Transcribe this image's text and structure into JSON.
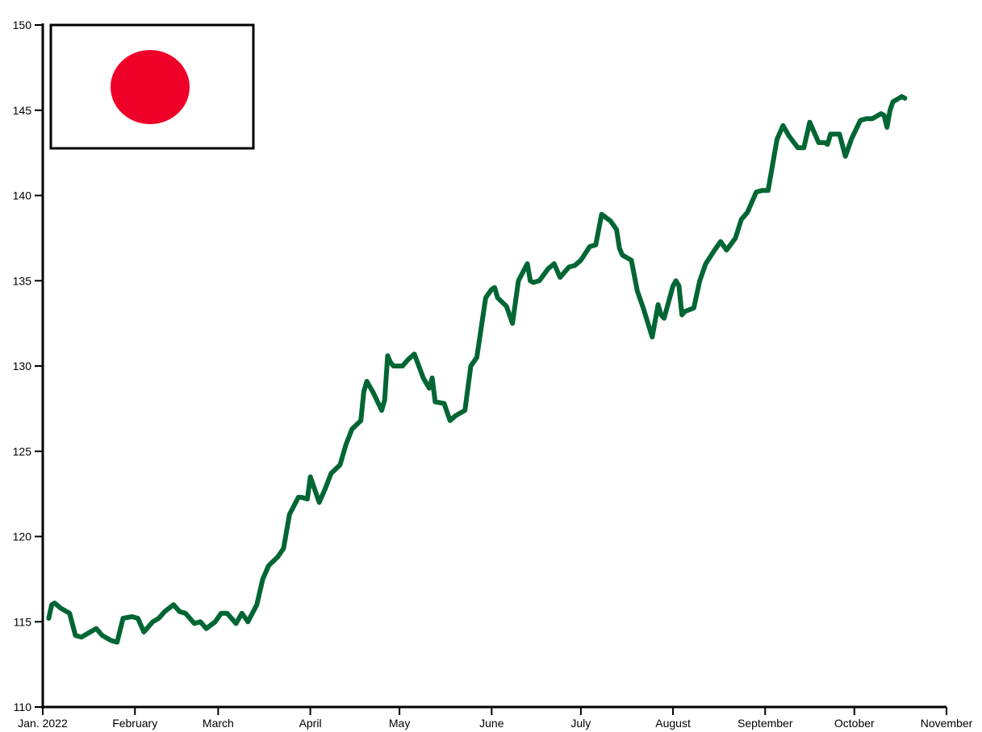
{
  "chart_data": {
    "type": "line",
    "title": "",
    "xlabel": "",
    "ylabel": "",
    "ylim": [
      110,
      150
    ],
    "xlim": [
      "2022-01-01",
      "2022-11-01"
    ],
    "yticks": [
      110,
      115,
      120,
      125,
      130,
      135,
      140,
      145,
      150
    ],
    "xticks": [
      {
        "date": "2022-01-01",
        "label": "Jan. 2022"
      },
      {
        "date": "2022-02-01",
        "label": "February"
      },
      {
        "date": "2022-03-01",
        "label": "March"
      },
      {
        "date": "2022-04-01",
        "label": "April"
      },
      {
        "date": "2022-05-01",
        "label": "May"
      },
      {
        "date": "2022-06-01",
        "label": "June"
      },
      {
        "date": "2022-07-01",
        "label": "July"
      },
      {
        "date": "2022-08-01",
        "label": "August"
      },
      {
        "date": "2022-09-01",
        "label": "September"
      },
      {
        "date": "2022-10-01",
        "label": "October"
      },
      {
        "date": "2022-11-01",
        "label": "November"
      }
    ],
    "grid": false,
    "legend": "none",
    "line_color": "#006633",
    "inset": {
      "type": "flag",
      "name": "japan-flag",
      "field_color": "#ffffff",
      "disc_color": "#ee0028"
    },
    "series": [
      {
        "x": [
          "2022-01-03",
          "2022-01-04",
          "2022-01-05",
          "2022-01-07",
          "2022-01-10",
          "2022-01-12",
          "2022-01-14",
          "2022-01-17",
          "2022-01-19",
          "2022-01-21",
          "2022-01-24",
          "2022-01-26",
          "2022-01-28",
          "2022-01-31",
          "2022-02-02",
          "2022-02-04",
          "2022-02-07",
          "2022-02-09",
          "2022-02-11",
          "2022-02-14",
          "2022-02-16",
          "2022-02-18",
          "2022-02-21",
          "2022-02-23",
          "2022-02-25",
          "2022-02-28",
          "2022-03-02",
          "2022-03-04",
          "2022-03-07",
          "2022-03-09",
          "2022-03-11",
          "2022-03-14",
          "2022-03-16",
          "2022-03-18",
          "2022-03-21",
          "2022-03-23",
          "2022-03-25",
          "2022-03-28",
          "2022-03-29",
          "2022-03-31",
          "2022-04-01",
          "2022-04-04",
          "2022-04-06",
          "2022-04-08",
          "2022-04-11",
          "2022-04-13",
          "2022-04-15",
          "2022-04-18",
          "2022-04-19",
          "2022-04-20",
          "2022-04-22",
          "2022-04-25",
          "2022-04-26",
          "2022-04-27",
          "2022-04-28",
          "2022-04-29",
          "2022-05-02",
          "2022-05-04",
          "2022-05-06",
          "2022-05-09",
          "2022-05-11",
          "2022-05-12",
          "2022-05-13",
          "2022-05-16",
          "2022-05-18",
          "2022-05-20",
          "2022-05-23",
          "2022-05-25",
          "2022-05-27",
          "2022-05-30",
          "2022-06-01",
          "2022-06-02",
          "2022-06-03",
          "2022-06-06",
          "2022-06-08",
          "2022-06-10",
          "2022-06-13",
          "2022-06-14",
          "2022-06-15",
          "2022-06-17",
          "2022-06-20",
          "2022-06-22",
          "2022-06-24",
          "2022-06-27",
          "2022-06-29",
          "2022-07-01",
          "2022-07-04",
          "2022-07-06",
          "2022-07-08",
          "2022-07-11",
          "2022-07-13",
          "2022-07-14",
          "2022-07-15",
          "2022-07-18",
          "2022-07-20",
          "2022-07-22",
          "2022-07-25",
          "2022-07-27",
          "2022-07-28",
          "2022-07-29",
          "2022-08-01",
          "2022-08-02",
          "2022-08-03",
          "2022-08-04",
          "2022-08-05",
          "2022-08-08",
          "2022-08-10",
          "2022-08-12",
          "2022-08-15",
          "2022-08-17",
          "2022-08-19",
          "2022-08-22",
          "2022-08-24",
          "2022-08-26",
          "2022-08-29",
          "2022-08-31",
          "2022-09-02",
          "2022-09-05",
          "2022-09-07",
          "2022-09-09",
          "2022-09-12",
          "2022-09-14",
          "2022-09-16",
          "2022-09-19",
          "2022-09-21",
          "2022-09-22",
          "2022-09-23",
          "2022-09-26",
          "2022-09-28",
          "2022-09-30",
          "2022-10-03",
          "2022-10-05",
          "2022-10-07",
          "2022-10-10",
          "2022-10-11",
          "2022-10-12",
          "2022-10-13",
          "2022-10-14",
          "2022-10-17",
          "2022-10-18"
        ],
        "y": [
          115.2,
          116.0,
          116.1,
          115.8,
          115.5,
          114.2,
          114.1,
          114.4,
          114.6,
          114.2,
          113.9,
          113.8,
          115.2,
          115.3,
          115.2,
          114.4,
          115.0,
          115.2,
          115.6,
          116.0,
          115.6,
          115.5,
          114.9,
          115.0,
          114.6,
          115.0,
          115.5,
          115.5,
          114.9,
          115.5,
          115.0,
          116.0,
          117.5,
          118.3,
          118.8,
          119.3,
          121.3,
          122.3,
          122.3,
          122.2,
          123.5,
          122.0,
          122.8,
          123.7,
          124.2,
          125.4,
          126.3,
          126.8,
          128.5,
          129.1,
          128.5,
          127.4,
          128.0,
          130.6,
          130.2,
          130.0,
          130.0,
          130.4,
          130.7,
          129.3,
          128.7,
          129.3,
          127.9,
          127.8,
          126.8,
          127.1,
          127.4,
          130.0,
          130.5,
          134.0,
          134.5,
          134.6,
          134.0,
          133.5,
          132.5,
          135.0,
          136.0,
          135.0,
          134.9,
          135.0,
          135.7,
          136.0,
          135.2,
          135.8,
          135.9,
          136.2,
          137.0,
          137.1,
          138.9,
          138.5,
          138.0,
          136.9,
          136.5,
          136.2,
          134.4,
          133.4,
          131.7,
          133.6,
          133.0,
          132.8,
          134.7,
          135.0,
          134.7,
          133.0,
          133.2,
          133.4,
          135.0,
          136.0,
          136.8,
          137.3,
          136.8,
          137.5,
          138.6,
          139.0,
          140.2,
          140.3,
          140.3,
          143.3,
          144.1,
          143.5,
          142.8,
          142.8,
          144.3,
          143.1,
          143.1,
          143.0,
          143.6,
          143.6,
          142.3,
          143.3,
          144.4,
          144.5,
          144.5,
          144.8,
          144.7,
          144.0,
          145.0,
          145.5,
          145.8,
          145.7
        ]
      }
    ]
  }
}
